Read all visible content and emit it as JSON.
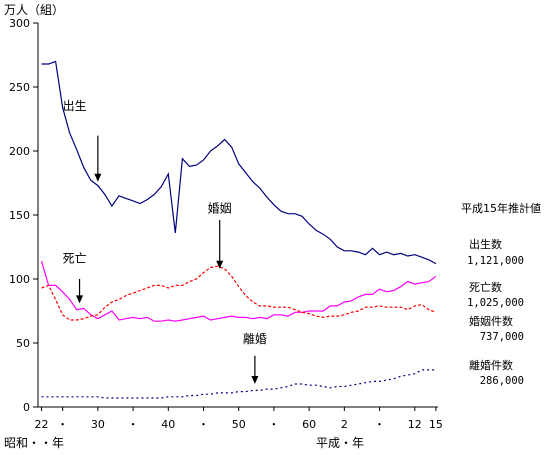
{
  "chart_data": {
    "type": "line",
    "ylabel": "万人（組）",
    "xlabel_showa": "昭和・・年",
    "xlabel_heisei": "平成・年",
    "ylim": [
      0,
      300
    ],
    "yticks": [
      "0",
      "50",
      "100",
      "150",
      "200",
      "250",
      "300"
    ],
    "xticks": [
      {
        "label": "22",
        "x": 1947
      },
      {
        "label": "・",
        "x": 1950
      },
      {
        "label": "30",
        "x": 1955
      },
      {
        "label": "・",
        "x": 1960
      },
      {
        "label": "40",
        "x": 1965
      },
      {
        "label": "・",
        "x": 1970
      },
      {
        "label": "50",
        "x": 1975
      },
      {
        "label": "・",
        "x": 1980
      },
      {
        "label": "60",
        "x": 1985
      },
      {
        "label": "2",
        "x": 1990
      },
      {
        "label": "・",
        "x": 1995
      },
      {
        "label": "12",
        "x": 2000
      },
      {
        "label": "15",
        "x": 2003
      }
    ],
    "xlim": [
      1946.5,
      2003.3
    ],
    "estimate_header": "平成15年推計値",
    "series": [
      {
        "key": "births",
        "color": "#000080",
        "dash": "",
        "label": "出生",
        "legend_name": "出生数",
        "legend_value": "1,121,000",
        "x": [
          1947,
          1948,
          1949,
          1950,
          1951,
          1952,
          1953,
          1954,
          1955,
          1956,
          1957,
          1958,
          1959,
          1960,
          1961,
          1962,
          1963,
          1964,
          1965,
          1966,
          1967,
          1968,
          1969,
          1970,
          1971,
          1972,
          1973,
          1974,
          1975,
          1976,
          1977,
          1978,
          1979,
          1980,
          1981,
          1982,
          1983,
          1984,
          1985,
          1986,
          1987,
          1988,
          1989,
          1990,
          1991,
          1992,
          1993,
          1994,
          1995,
          1996,
          1997,
          1998,
          1999,
          2000,
          2001,
          2002,
          2003
        ],
        "values": [
          268,
          268,
          270,
          234,
          214,
          201,
          187,
          177,
          173,
          166,
          157,
          165,
          163,
          161,
          159,
          162,
          166,
          172,
          182,
          136,
          194,
          188,
          189,
          193,
          200,
          204,
          209,
          203,
          190,
          183,
          176,
          171,
          164,
          158,
          153,
          151,
          151,
          149,
          143,
          138,
          135,
          131,
          125,
          122,
          122,
          121,
          119,
          124,
          119,
          121,
          119,
          120,
          118,
          119,
          117,
          115,
          112
        ]
      },
      {
        "key": "deaths",
        "color": "#ff00ff",
        "dash": "",
        "label": "死亡",
        "legend_name": "死亡数",
        "legend_value": "1,025,000",
        "x": [
          1947,
          1948,
          1949,
          1950,
          1951,
          1952,
          1953,
          1954,
          1955,
          1956,
          1957,
          1958,
          1959,
          1960,
          1961,
          1962,
          1963,
          1964,
          1965,
          1966,
          1967,
          1968,
          1969,
          1970,
          1971,
          1972,
          1973,
          1974,
          1975,
          1976,
          1977,
          1978,
          1979,
          1980,
          1981,
          1982,
          1983,
          1984,
          1985,
          1986,
          1987,
          1988,
          1989,
          1990,
          1991,
          1992,
          1993,
          1994,
          1995,
          1996,
          1997,
          1998,
          1999,
          2000,
          2001,
          2002,
          2003
        ],
        "values": [
          114,
          95,
          95,
          90,
          84,
          76,
          77,
          72,
          69,
          72,
          75,
          68,
          69,
          70,
          69,
          70,
          67,
          67,
          68,
          67,
          68,
          69,
          70,
          71,
          68,
          69,
          70,
          71,
          70,
          70,
          69,
          70,
          69,
          72,
          72,
          71,
          74,
          74,
          75,
          75,
          75,
          79,
          79,
          82,
          83,
          86,
          88,
          88,
          92,
          90,
          91,
          94,
          98,
          96,
          97,
          98,
          102
        ]
      },
      {
        "key": "marriages",
        "color": "#ff0000",
        "dash": "3,2",
        "label": "婚姻",
        "legend_name": "婚姻件数",
        "legend_value": "737,000",
        "x": [
          1947,
          1948,
          1949,
          1950,
          1951,
          1952,
          1953,
          1954,
          1955,
          1956,
          1957,
          1958,
          1959,
          1960,
          1961,
          1962,
          1963,
          1964,
          1965,
          1966,
          1967,
          1968,
          1969,
          1970,
          1971,
          1972,
          1973,
          1974,
          1975,
          1976,
          1977,
          1978,
          1979,
          1980,
          1981,
          1982,
          1983,
          1984,
          1985,
          1986,
          1987,
          1988,
          1989,
          1990,
          1991,
          1992,
          1993,
          1994,
          1995,
          1996,
          1997,
          1998,
          1999,
          2000,
          2001,
          2002,
          2003
        ],
        "values": [
          93,
          95,
          84,
          72,
          68,
          68,
          69,
          71,
          72,
          78,
          82,
          84,
          87,
          89,
          91,
          93,
          95,
          95,
          93,
          95,
          95,
          98,
          100,
          105,
          109,
          110,
          108,
          102,
          94,
          87,
          82,
          79,
          79,
          78,
          78,
          78,
          76,
          74,
          73,
          71,
          70,
          71,
          71,
          72,
          74,
          75,
          78,
          78,
          79,
          78,
          78,
          78,
          76,
          79,
          80,
          76,
          74
        ]
      },
      {
        "key": "divorces",
        "color": "#000080",
        "dash": "2,3",
        "label": "離婚",
        "legend_name": "離婚件数",
        "legend_value": "286,000",
        "x": [
          1947,
          1948,
          1949,
          1950,
          1951,
          1952,
          1953,
          1954,
          1955,
          1956,
          1957,
          1958,
          1959,
          1960,
          1961,
          1962,
          1963,
          1964,
          1965,
          1966,
          1967,
          1968,
          1969,
          1970,
          1971,
          1972,
          1973,
          1974,
          1975,
          1976,
          1977,
          1978,
          1979,
          1980,
          1981,
          1982,
          1983,
          1984,
          1985,
          1986,
          1987,
          1988,
          1989,
          1990,
          1991,
          1992,
          1993,
          1994,
          1995,
          1996,
          1997,
          1998,
          1999,
          2000,
          2001,
          2002,
          2003
        ],
        "values": [
          8,
          8,
          8,
          8,
          8,
          8,
          8,
          8,
          8,
          7,
          7,
          7,
          7,
          7,
          7,
          7,
          7,
          7,
          8,
          8,
          8,
          9,
          9,
          10,
          10,
          11,
          11,
          11,
          12,
          12,
          13,
          13,
          14,
          14,
          15,
          16,
          18,
          18,
          17,
          17,
          16,
          15,
          16,
          16,
          17,
          18,
          19,
          20,
          20,
          21,
          22,
          24,
          25,
          26,
          29,
          29,
          29
        ]
      }
    ],
    "annotations": [
      {
        "key": "births",
        "text": "出生",
        "tx": 1951.7,
        "ty": 232,
        "ax": 1955.0,
        "ay1": 212,
        "ay2": 176
      },
      {
        "key": "deaths",
        "text": "死亡",
        "tx": 1951.7,
        "ty": 113,
        "ax": 1952.4,
        "ay1": 100,
        "ay2": 81
      },
      {
        "key": "marriages",
        "text": "婚姻",
        "tx": 1972.3,
        "ty": 152,
        "ax": 1972.3,
        "ay1": 146,
        "ay2": 108
      },
      {
        "key": "divorces",
        "text": "離婚",
        "tx": 1977.3,
        "ty": 50,
        "ax": 1977.3,
        "ay1": 40,
        "ay2": 18
      }
    ]
  }
}
